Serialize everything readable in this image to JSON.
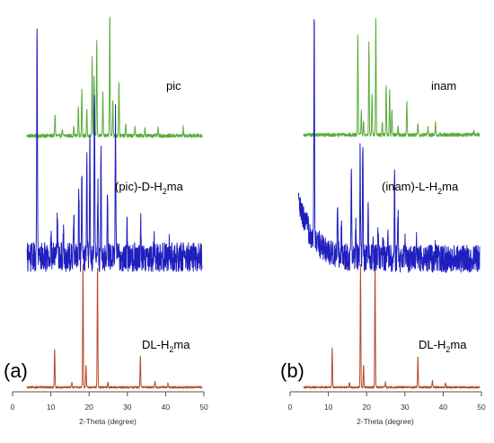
{
  "chart_data": [
    {
      "panel_label": "(a)",
      "type": "line",
      "xlabel": "2-Theta (degree)",
      "xlim": [
        0,
        50
      ],
      "xticks": [
        0,
        10,
        20,
        30,
        40,
        50
      ],
      "series": [
        {
          "name": "pic",
          "name_base": "pic",
          "name_sub": "",
          "name_tail": "",
          "color": "#5aac3c",
          "noise": 0.015,
          "peaks": [
            [
              11.1,
              0.18
            ],
            [
              13.0,
              0.05
            ],
            [
              16.0,
              0.07
            ],
            [
              17.2,
              0.25
            ],
            [
              18.1,
              0.38
            ],
            [
              19.4,
              0.22
            ],
            [
              20.8,
              0.65
            ],
            [
              21.3,
              0.5
            ],
            [
              22.0,
              0.78
            ],
            [
              23.6,
              0.35
            ],
            [
              25.4,
              1.0
            ],
            [
              26.2,
              0.3
            ],
            [
              27.8,
              0.45
            ],
            [
              29.6,
              0.1
            ],
            [
              32.0,
              0.08
            ],
            [
              34.6,
              0.06
            ],
            [
              38.0,
              0.06
            ],
            [
              44.6,
              0.07
            ]
          ]
        },
        {
          "name": "(pic)-D-H2ma",
          "name_base": "(pic)-D-H",
          "name_sub": "2",
          "name_tail": "ma",
          "color": "#1f1fbf",
          "noise": 0.06,
          "peaks": [
            [
              6.4,
              1.0
            ],
            [
              10.0,
              0.12
            ],
            [
              11.7,
              0.18
            ],
            [
              13.3,
              0.12
            ],
            [
              16.0,
              0.2
            ],
            [
              17.3,
              0.3
            ],
            [
              18.1,
              0.35
            ],
            [
              19.4,
              0.42
            ],
            [
              20.2,
              0.5
            ],
            [
              21.4,
              0.72
            ],
            [
              22.3,
              0.3
            ],
            [
              23.1,
              0.45
            ],
            [
              24.8,
              0.25
            ],
            [
              26.9,
              0.62
            ],
            [
              29.9,
              0.12
            ],
            [
              33.5,
              0.15
            ],
            [
              37.0,
              0.07
            ],
            [
              41.0,
              0.06
            ]
          ]
        },
        {
          "name": "DL-H2ma",
          "name_base": "DL-H",
          "name_sub": "2",
          "name_tail": "ma",
          "color": "#b54a2c",
          "noise": 0.008,
          "peaks": [
            [
              11.0,
              0.32
            ],
            [
              15.5,
              0.04
            ],
            [
              18.4,
              1.0
            ],
            [
              19.2,
              0.18
            ],
            [
              22.2,
              1.0
            ],
            [
              24.9,
              0.04
            ],
            [
              33.4,
              0.26
            ],
            [
              37.2,
              0.05
            ],
            [
              40.6,
              0.03
            ]
          ]
        }
      ]
    },
    {
      "panel_label": "(b)",
      "type": "line",
      "xlabel": "2-Theta (degree)",
      "xlim": [
        0,
        50
      ],
      "xticks": [
        0,
        10,
        20,
        30,
        40,
        50
      ],
      "series": [
        {
          "name": "inam",
          "name_base": "inam",
          "name_sub": "",
          "name_tail": "",
          "color": "#5aac3c",
          "noise": 0.015,
          "peaks": [
            [
              17.7,
              0.85
            ],
            [
              18.6,
              0.2
            ],
            [
              19.2,
              0.12
            ],
            [
              20.6,
              0.78
            ],
            [
              21.4,
              0.35
            ],
            [
              22.4,
              1.0
            ],
            [
              24.1,
              0.12
            ],
            [
              25.1,
              0.42
            ],
            [
              26.0,
              0.38
            ],
            [
              26.6,
              0.22
            ],
            [
              28.2,
              0.08
            ],
            [
              30.5,
              0.28
            ],
            [
              33.4,
              0.1
            ],
            [
              36.0,
              0.06
            ],
            [
              38.0,
              0.1
            ],
            [
              48.0,
              0.03
            ]
          ]
        },
        {
          "name": "(inam)-L-H2ma",
          "name_base": "(inam)-L-H",
          "name_sub": "2",
          "name_tail": "ma",
          "color": "#1f1fbf",
          "noise": 0.06,
          "baseline_decay": 0.5,
          "peaks": [
            [
              6.3,
              1.0
            ],
            [
              12.4,
              0.2
            ],
            [
              13.4,
              0.12
            ],
            [
              16.0,
              0.4
            ],
            [
              17.2,
              0.18
            ],
            [
              18.3,
              0.45
            ],
            [
              19.0,
              0.52
            ],
            [
              20.4,
              0.2
            ],
            [
              21.6,
              0.1
            ],
            [
              23.0,
              0.12
            ],
            [
              24.3,
              0.1
            ],
            [
              25.6,
              0.12
            ],
            [
              27.3,
              0.4
            ],
            [
              28.2,
              0.2
            ],
            [
              30.0,
              0.12
            ],
            [
              33.0,
              0.08
            ],
            [
              38.0,
              0.05
            ]
          ]
        },
        {
          "name": "DL-H2ma",
          "name_base": "DL-H",
          "name_sub": "2",
          "name_tail": "ma",
          "color": "#b54a2c",
          "noise": 0.008,
          "peaks": [
            [
              11.0,
              0.32
            ],
            [
              15.5,
              0.04
            ],
            [
              18.4,
              1.0
            ],
            [
              19.2,
              0.18
            ],
            [
              22.2,
              1.0
            ],
            [
              24.9,
              0.04
            ],
            [
              33.4,
              0.26
            ],
            [
              37.2,
              0.05
            ],
            [
              40.6,
              0.03
            ]
          ]
        }
      ]
    }
  ]
}
